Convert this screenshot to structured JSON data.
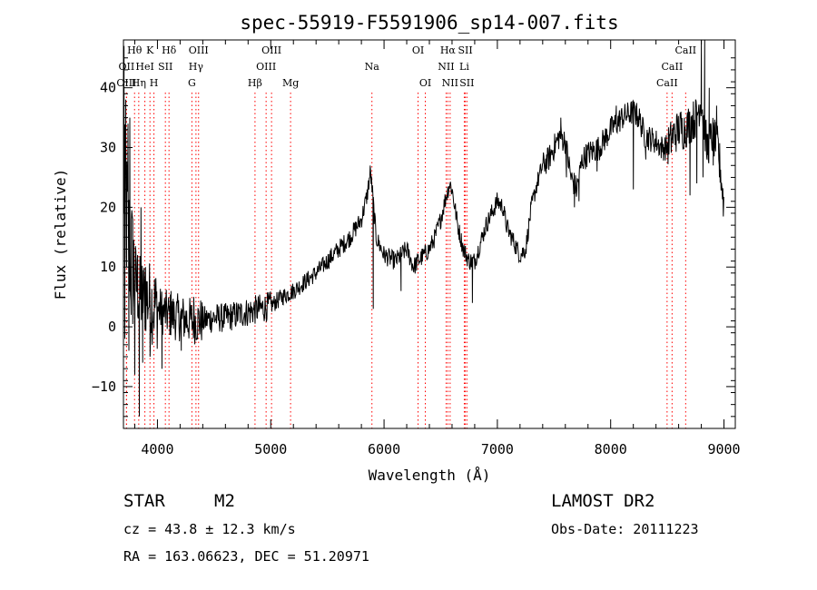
{
  "chart_data": {
    "type": "line",
    "title": "spec-55919-F5591906_sp14-007.fits",
    "xlabel": "Wavelength (Å)",
    "ylabel": "Flux (relative)",
    "xlim": [
      3700,
      9100
    ],
    "ylim": [
      -17,
      48
    ],
    "xticks": [
      4000,
      5000,
      6000,
      7000,
      8000,
      9000
    ],
    "yticks": [
      -10,
      0,
      10,
      20,
      30,
      40
    ],
    "grid": false,
    "line_color": "#000000",
    "marker_color": "#ff0000",
    "spectrum_anchors": {
      "x": [
        3700,
        3760,
        3800,
        3850,
        3900,
        3950,
        4000,
        4100,
        4200,
        4300,
        4400,
        4500,
        4600,
        4700,
        4800,
        4900,
        5000,
        5100,
        5200,
        5300,
        5400,
        5500,
        5600,
        5700,
        5800,
        5850,
        5880,
        5900,
        5930,
        6000,
        6100,
        6150,
        6200,
        6260,
        6300,
        6400,
        6450,
        6500,
        6550,
        6580,
        6600,
        6650,
        6700,
        6750,
        6800,
        6850,
        6900,
        6950,
        7000,
        7050,
        7080,
        7100,
        7150,
        7200,
        7250,
        7300,
        7350,
        7400,
        7450,
        7500,
        7550,
        7600,
        7650,
        7700,
        7750,
        7800,
        7900,
        8000,
        8100,
        8200,
        8250,
        8300,
        8400,
        8450,
        8500,
        8550,
        8600,
        8650,
        8700,
        8750,
        8800,
        8850,
        8900,
        8950,
        9000
      ],
      "y": [
        25,
        12,
        8,
        5,
        5,
        4,
        3,
        2,
        1.5,
        1,
        1,
        1.5,
        1.5,
        2,
        2.5,
        3,
        3.5,
        5,
        6,
        7.5,
        9,
        11,
        13,
        15,
        18,
        22,
        26,
        22,
        15,
        12,
        11,
        12,
        13,
        10,
        11,
        13,
        15,
        18,
        22,
        24,
        23,
        17,
        13,
        11,
        11,
        14,
        17,
        19,
        21,
        20,
        17,
        16,
        14,
        12,
        13,
        20,
        24,
        27,
        28,
        30,
        32,
        31,
        25,
        23,
        28,
        29,
        30,
        33,
        35,
        36,
        35,
        32,
        31,
        30,
        30,
        32,
        33,
        33,
        34,
        35,
        38,
        30,
        32,
        30,
        20
      ]
    },
    "spike_events": [
      {
        "x": 3705,
        "y": 47
      },
      {
        "x": 3712,
        "y": -2
      },
      {
        "x": 3720,
        "y": 38
      },
      {
        "x": 3728,
        "y": 10
      },
      {
        "x": 3740,
        "y": 34
      },
      {
        "x": 3748,
        "y": -4
      },
      {
        "x": 3756,
        "y": 35
      },
      {
        "x": 3768,
        "y": 2
      },
      {
        "x": 3782,
        "y": 18
      },
      {
        "x": 3800,
        "y": -8
      },
      {
        "x": 3825,
        "y": 12
      },
      {
        "x": 3840,
        "y": -15
      },
      {
        "x": 3855,
        "y": 20
      },
      {
        "x": 3870,
        "y": -6
      },
      {
        "x": 3895,
        "y": 10
      },
      {
        "x": 3935,
        "y": -5
      },
      {
        "x": 3975,
        "y": 8
      },
      {
        "x": 4040,
        "y": -7
      },
      {
        "x": 4120,
        "y": 6
      },
      {
        "x": 4210,
        "y": -4
      },
      {
        "x": 4320,
        "y": 5
      },
      {
        "x": 5905,
        "y": 3
      },
      {
        "x": 6150,
        "y": 6
      },
      {
        "x": 6780,
        "y": 4
      },
      {
        "x": 7560,
        "y": 35
      },
      {
        "x": 7610,
        "y": 25
      },
      {
        "x": 7680,
        "y": 20
      },
      {
        "x": 7720,
        "y": 21
      },
      {
        "x": 7880,
        "y": 26
      },
      {
        "x": 8050,
        "y": 37
      },
      {
        "x": 8200,
        "y": 23
      },
      {
        "x": 8225,
        "y": 37
      },
      {
        "x": 8310,
        "y": 28
      },
      {
        "x": 8460,
        "y": 30
      },
      {
        "x": 8620,
        "y": 36
      },
      {
        "x": 8700,
        "y": 22
      },
      {
        "x": 8715,
        "y": 35
      },
      {
        "x": 8760,
        "y": 24
      },
      {
        "x": 8800,
        "y": 48
      },
      {
        "x": 8815,
        "y": 25
      },
      {
        "x": 8830,
        "y": 48
      },
      {
        "x": 8850,
        "y": 28
      },
      {
        "x": 8870,
        "y": 40
      },
      {
        "x": 8905,
        "y": 27
      },
      {
        "x": 8935,
        "y": 37
      },
      {
        "x": 8960,
        "y": 25
      }
    ],
    "line_markers": [
      {
        "label": "Hθ",
        "x": 3798,
        "row": 0
      },
      {
        "label": "K",
        "x": 3934,
        "row": 0
      },
      {
        "label": "Hδ",
        "x": 4102,
        "row": 0
      },
      {
        "label": "OIII",
        "x": 4363,
        "row": 0
      },
      {
        "label": "OIII",
        "x": 5007,
        "row": 0
      },
      {
        "label": "OI",
        "x": 6300,
        "row": 0
      },
      {
        "label": "Hα",
        "x": 6563,
        "row": 0
      },
      {
        "label": "SII",
        "x": 6717,
        "row": 0
      },
      {
        "label": "CaII",
        "x": 8662,
        "row": 0
      },
      {
        "label": "OII",
        "x": 3727,
        "row": 1
      },
      {
        "label": "HeI",
        "x": 3889,
        "row": 1
      },
      {
        "label": "SII",
        "x": 4070,
        "row": 1
      },
      {
        "label": "Hγ",
        "x": 4340,
        "row": 1
      },
      {
        "label": "OIII",
        "x": 4959,
        "row": 1
      },
      {
        "label": "Na",
        "x": 5893,
        "row": 1
      },
      {
        "label": "NII",
        "x": 6548,
        "row": 1
      },
      {
        "label": "Li",
        "x": 6708,
        "row": 1
      },
      {
        "label": "CaII",
        "x": 8542,
        "row": 1
      },
      {
        "label": "OIII",
        "x": 3727,
        "row": 2
      },
      {
        "label": "Hη",
        "x": 3835,
        "row": 2
      },
      {
        "label": "H",
        "x": 3969,
        "row": 2
      },
      {
        "label": "G",
        "x": 4304,
        "row": 2
      },
      {
        "label": "Hβ",
        "x": 4861,
        "row": 2
      },
      {
        "label": "Mg",
        "x": 5175,
        "row": 2
      },
      {
        "label": "OI",
        "x": 6364,
        "row": 2
      },
      {
        "label": "NII",
        "x": 6583,
        "row": 2
      },
      {
        "label": "SII",
        "x": 6731,
        "row": 2
      },
      {
        "label": "CaII",
        "x": 8498,
        "row": 2
      }
    ]
  },
  "info": {
    "class_label": "STAR",
    "subclass": "M2",
    "survey": "LAMOST DR2",
    "cz": "cz = 43.8 ± 12.3 km/s",
    "obsdate": "Obs-Date: 20111223",
    "radec": "RA = 163.06623, DEC =  51.20971"
  }
}
